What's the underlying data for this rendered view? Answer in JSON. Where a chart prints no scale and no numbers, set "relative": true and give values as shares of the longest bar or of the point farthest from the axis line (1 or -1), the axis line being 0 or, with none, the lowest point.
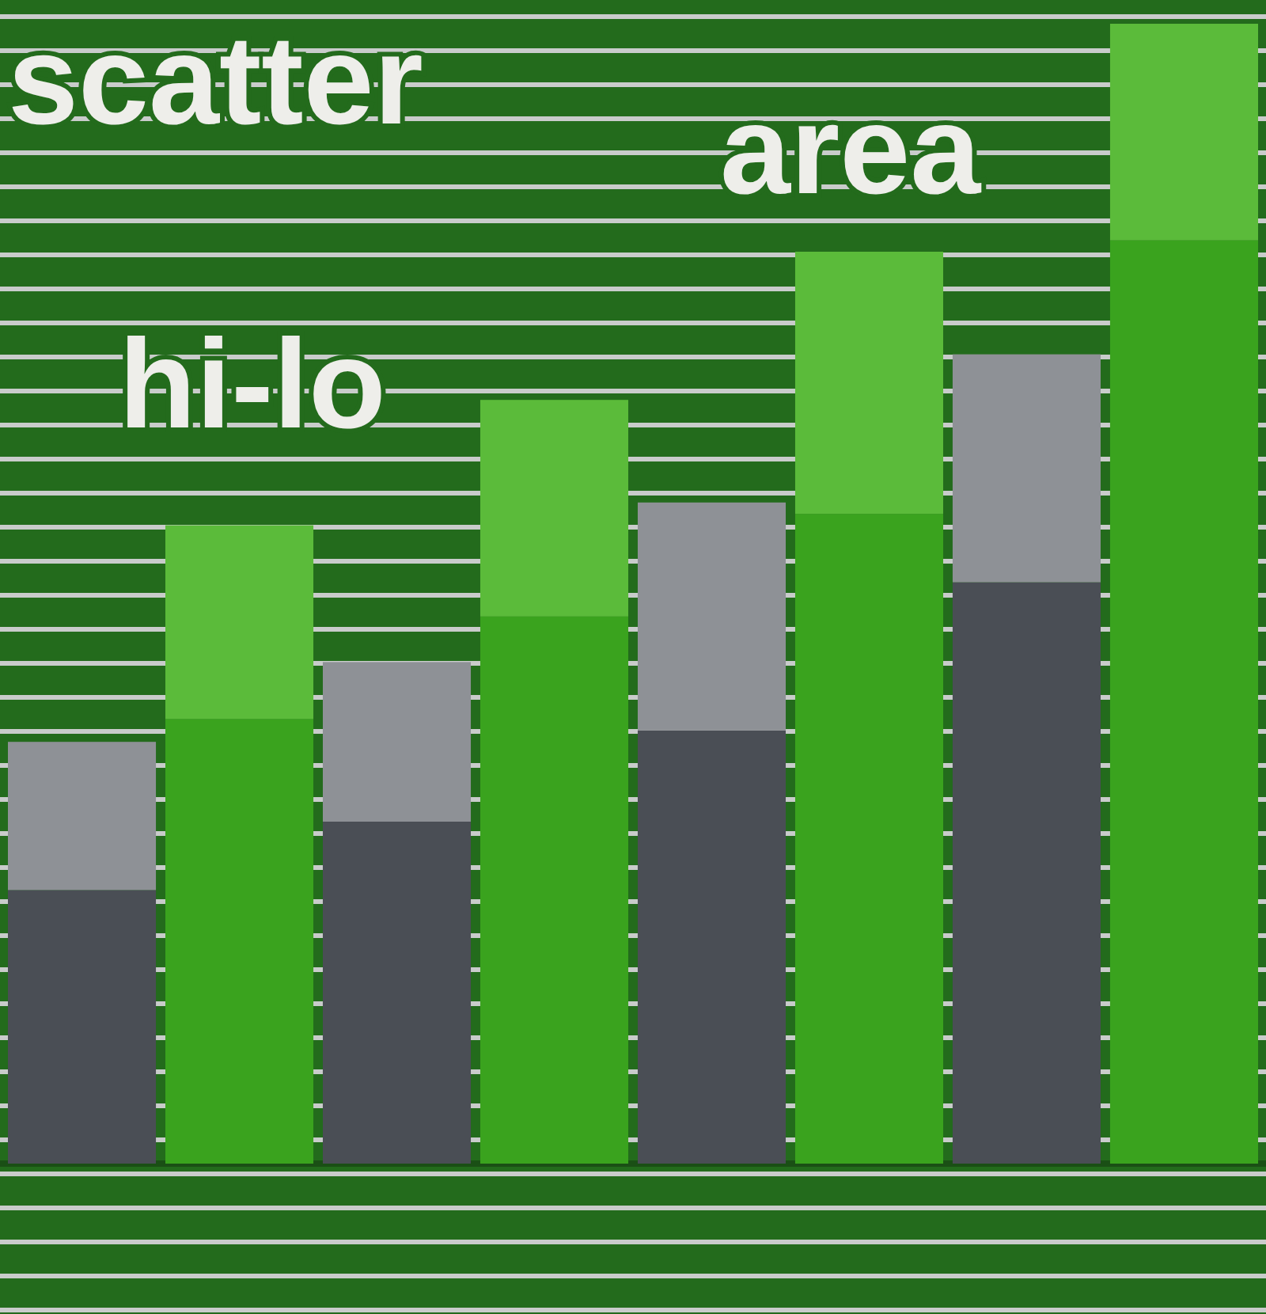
{
  "chart_data": {
    "type": "bar",
    "stacked": true,
    "relative": true,
    "categories": [
      null,
      null,
      null,
      null,
      null,
      null,
      null,
      null
    ],
    "series": [
      {
        "color": "#4a4e55",
        "values": [
          0.24,
          null,
          0.3,
          null,
          0.38,
          null,
          0.51,
          null
        ]
      },
      {
        "color": "#8e9196",
        "values": [
          0.13,
          null,
          0.14,
          null,
          0.2,
          null,
          0.2,
          null
        ]
      },
      {
        "color": "#3aa31e",
        "values": [
          null,
          0.39,
          null,
          0.48,
          null,
          0.57,
          null,
          0.81
        ]
      },
      {
        "color": "#5bbb3a",
        "values": [
          null,
          0.17,
          null,
          0.19,
          null,
          0.23,
          null,
          0.19
        ]
      }
    ],
    "annotations": [
      "scatter",
      "area",
      "hi-lo"
    ]
  }
}
